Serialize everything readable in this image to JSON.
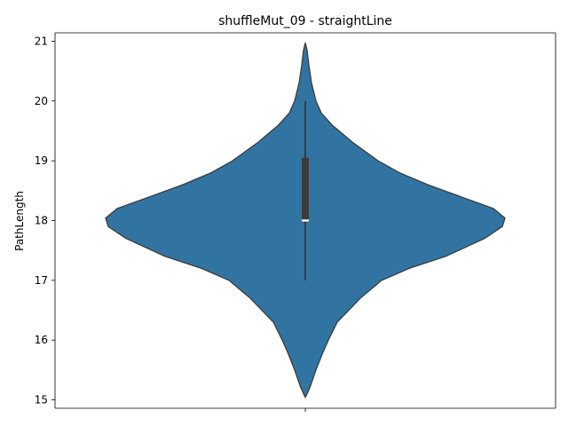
{
  "chart_data": {
    "type": "violin",
    "title": "shuffleMut_09 - straightLine",
    "xlabel": "",
    "ylabel": "PathLength",
    "ylim": [
      14.86,
      21.14
    ],
    "yticks": [
      15,
      16,
      17,
      18,
      19,
      20,
      21
    ],
    "xticks": [
      ""
    ],
    "colors": {
      "violin": "#3274a1",
      "outline": "#3b3b3b",
      "box": "#3b3b3b",
      "median": "#ffffff"
    },
    "violin_density": [
      {
        "y": 15.04,
        "half_width": 0.0
      },
      {
        "y": 15.2,
        "half_width": 0.05
      },
      {
        "y": 15.5,
        "half_width": 0.12
      },
      {
        "y": 15.8,
        "half_width": 0.2
      },
      {
        "y": 16.0,
        "half_width": 0.26
      },
      {
        "y": 16.3,
        "half_width": 0.36
      },
      {
        "y": 16.5,
        "half_width": 0.49
      },
      {
        "y": 16.7,
        "half_width": 0.62
      },
      {
        "y": 17.0,
        "half_width": 0.86
      },
      {
        "y": 17.2,
        "half_width": 1.17
      },
      {
        "y": 17.4,
        "half_width": 1.58
      },
      {
        "y": 17.7,
        "half_width": 2.02
      },
      {
        "y": 17.9,
        "half_width": 2.22
      },
      {
        "y": 18.04,
        "half_width": 2.25
      },
      {
        "y": 18.2,
        "half_width": 2.12
      },
      {
        "y": 18.4,
        "half_width": 1.75
      },
      {
        "y": 18.6,
        "half_width": 1.38
      },
      {
        "y": 18.8,
        "half_width": 1.06
      },
      {
        "y": 19.0,
        "half_width": 0.82
      },
      {
        "y": 19.3,
        "half_width": 0.54
      },
      {
        "y": 19.6,
        "half_width": 0.3
      },
      {
        "y": 19.8,
        "half_width": 0.18
      },
      {
        "y": 20.0,
        "half_width": 0.12
      },
      {
        "y": 20.3,
        "half_width": 0.07
      },
      {
        "y": 20.6,
        "half_width": 0.04
      },
      {
        "y": 20.85,
        "half_width": 0.02
      },
      {
        "y": 20.97,
        "half_width": 0.0
      }
    ],
    "box": {
      "whisker_low": 17,
      "q1": 17.97,
      "median": 18,
      "q3": 19.05,
      "whisker_high": 20
    }
  }
}
